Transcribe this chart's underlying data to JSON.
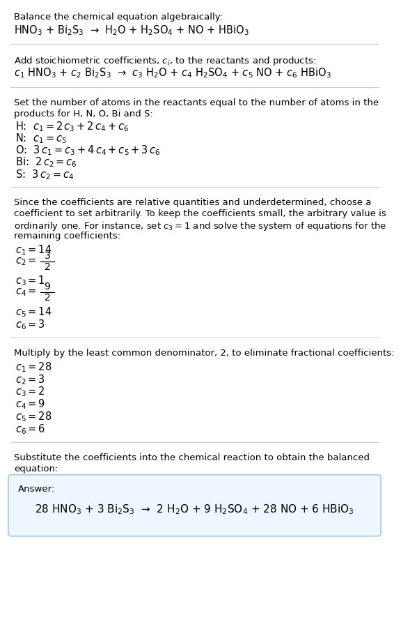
{
  "bg_color": "#ffffff",
  "text_color": "#000000",
  "box_border_color": "#a8c8e8",
  "box_fill_color": "#eef6ff",
  "sep_color": "#cccccc",
  "s1_header": "Balance the chemical equation algebraically:",
  "s1_eq": "HNO$_3$ + Bi$_2$S$_3$  →  H$_2$O + H$_2$SO$_4$ + NO + HBiO$_3$",
  "s2_header": "Add stoichiometric coefficients, $c_i$, to the reactants and products:",
  "s2_eq": "$c_1$ HNO$_3$ + $c_2$ Bi$_2$S$_3$  →  $c_3$ H$_2$O + $c_4$ H$_2$SO$_4$ + $c_5$ NO + $c_6$ HBiO$_3$",
  "s3_h1": "Set the number of atoms in the reactants equal to the number of atoms in the",
  "s3_h2": "products for H, N, O, Bi and S:",
  "s3_eqs": [
    "H:  $c_1 = 2\\,c_3 + 2\\,c_4 + c_6$",
    "N:  $c_1 = c_5$",
    "O:  $3\\,c_1 = c_3 + 4\\,c_4 + c_5 + 3\\,c_6$",
    "Bi:  $2\\,c_2 = c_6$",
    "S:  $3\\,c_2 = c_4$"
  ],
  "s4_h1": "Since the coefficients are relative quantities and underdetermined, choose a",
  "s4_h2": "coefficient to set arbitrarily. To keep the coefficients small, the arbitrary value is",
  "s4_h3": "ordinarily one. For instance, set $c_3 = 1$ and solve the system of equations for the",
  "s4_h4": "remaining coefficients:",
  "s4_coeffs": [
    {
      "text": "$c_1 = 14$",
      "frac": false
    },
    {
      "text": "$c_2 = $",
      "frac": true,
      "num": "3",
      "den": "2"
    },
    {
      "text": "$c_3 = 1$",
      "frac": false
    },
    {
      "text": "$c_4 = $",
      "frac": true,
      "num": "9",
      "den": "2"
    },
    {
      "text": "$c_5 = 14$",
      "frac": false
    },
    {
      "text": "$c_6 = 3$",
      "frac": false
    }
  ],
  "s5_header": "Multiply by the least common denominator, 2, to eliminate fractional coefficients:",
  "s5_eqs": [
    "$c_1 = 28$",
    "$c_2 = 3$",
    "$c_3 = 2$",
    "$c_4 = 9$",
    "$c_5 = 28$",
    "$c_6 = 6$"
  ],
  "s6_h1": "Substitute the coefficients into the chemical reaction to obtain the balanced",
  "s6_h2": "equation:",
  "answer_label": "Answer:",
  "answer_eq": "28 HNO$_3$ + 3 Bi$_2$S$_3$  →  2 H$_2$O + 9 H$_2$SO$_4$ + 28 NO + 6 HBiO$_3$"
}
